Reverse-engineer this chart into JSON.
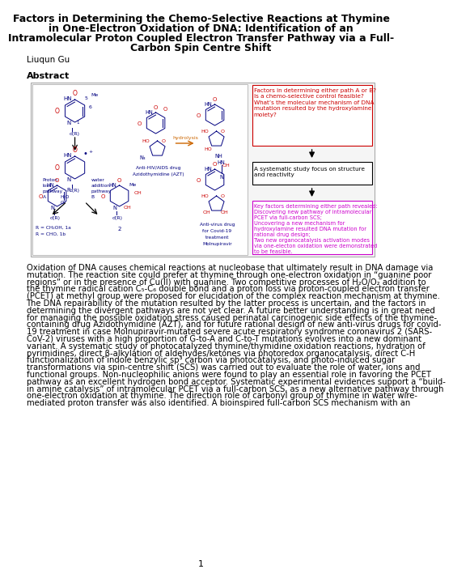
{
  "title_lines": [
    "Factors in Determining the Chemo-Selective Reactions at Thymine",
    "in One-Electron Oxidation of DNA: Identification of an",
    "Intramolecular Proton Coupled Electron Transfer Pathway via a Full-",
    "Carbon Spin Centre Shift"
  ],
  "author": "Liuqun Gu",
  "abstract_label": "Abstract",
  "body_text_lines": [
    "Oxidation of DNA causes chemical reactions at nucleobase that ultimately result in DNA damage via",
    "mutation. The reaction site could prefer at thymine through one-electron oxidation in “guanine poor",
    "regions” or in the presence of Cu(II) with guanine. Two competitive processes of H₂O/O₂ addition to",
    "the thymine radical cation C₅-C₆ double bond and a proton loss via proton-coupled electron transfer",
    "(PCET) at methyl group were proposed for elucidation of the complex reaction mechanism at thymine.",
    "The DNA repairability of the mutation resulted by the latter process is uncertain, and the factors in",
    "determining the divergent pathways are not yet clear. A future better understanding is in great need",
    "for managing the possible oxidation stress caused perinatal carcinogenic side effects of the thymine-",
    "containing drug Azidothymidine (AZT), and for future rational design of new anti-virus drugs for covid-",
    "19 treatment in case Molnupiravir-mutated severe acute respiratory syndrome coronavirus 2 (SARS-",
    "CoV-2) viruses with a high proportion of G-to-A and C-to-T mutations evolves into a new dominant",
    "variant. A systematic study of photocatalyzed thymine/thymidine oxidation reactions, hydration of",
    "pyrimidines, direct β-alkylation of aldehydes/ketones via photoredox organocatalysis, direct C-H",
    "functionalization of indole benzylic sp³ carbon via photocatalysis, and photo-induced sugar",
    "transformations via spin-centre shift (SCS) was carried out to evaluate the role of water, ions and",
    "functional groups. Non-nucleophilic anions were found to play an essential role in favoring the PCET",
    "pathway as an excellent hydrogen bond acceptor. Systematic experimental evidences support a “build-",
    "in amine catalysis” of intramolecular PCET via a full-carbon SCS, as a new alternative pathway through",
    "one-electron oxidation at thymine. The direction role of carbonyl group of thymine in water wire-",
    "mediated proton transfer was also identified. A bioinspired full-carbon SCS mechanism with an"
  ],
  "page_number": "1",
  "bg_color": "#ffffff",
  "title_color": "#000000",
  "title_fontsize": 9.0,
  "author_fontsize": 7.5,
  "abstract_label_fontsize": 8.0,
  "body_fontsize": 7.2,
  "right_box1_text": [
    "Factors in determining either path A or B?",
    "Is a chemo-selective control feasible?",
    "What’s the molecular mechanism of DNA",
    "mutation resulted by the hydroxylamine",
    "moiety?"
  ],
  "right_box2_text": [
    "A systematic study focus on structure",
    "and reactivity"
  ],
  "right_box3_text": [
    "Key factors determining either path revealed:",
    "Discovering new pathway of intramolecular",
    "PCET via full-carbon SCS;",
    "Uncovering a new mechanism for",
    "hydroxylamine resulted DNA mutation for",
    "rational drug design;",
    "Two new organocatalysis activation modes",
    "via one-electon oxidation were demonstrated",
    "to be feasible."
  ],
  "red_color": "#cc0000",
  "magenta_color": "#cc00cc",
  "dark_blue": "#000080",
  "orange_color": "#cc6600"
}
